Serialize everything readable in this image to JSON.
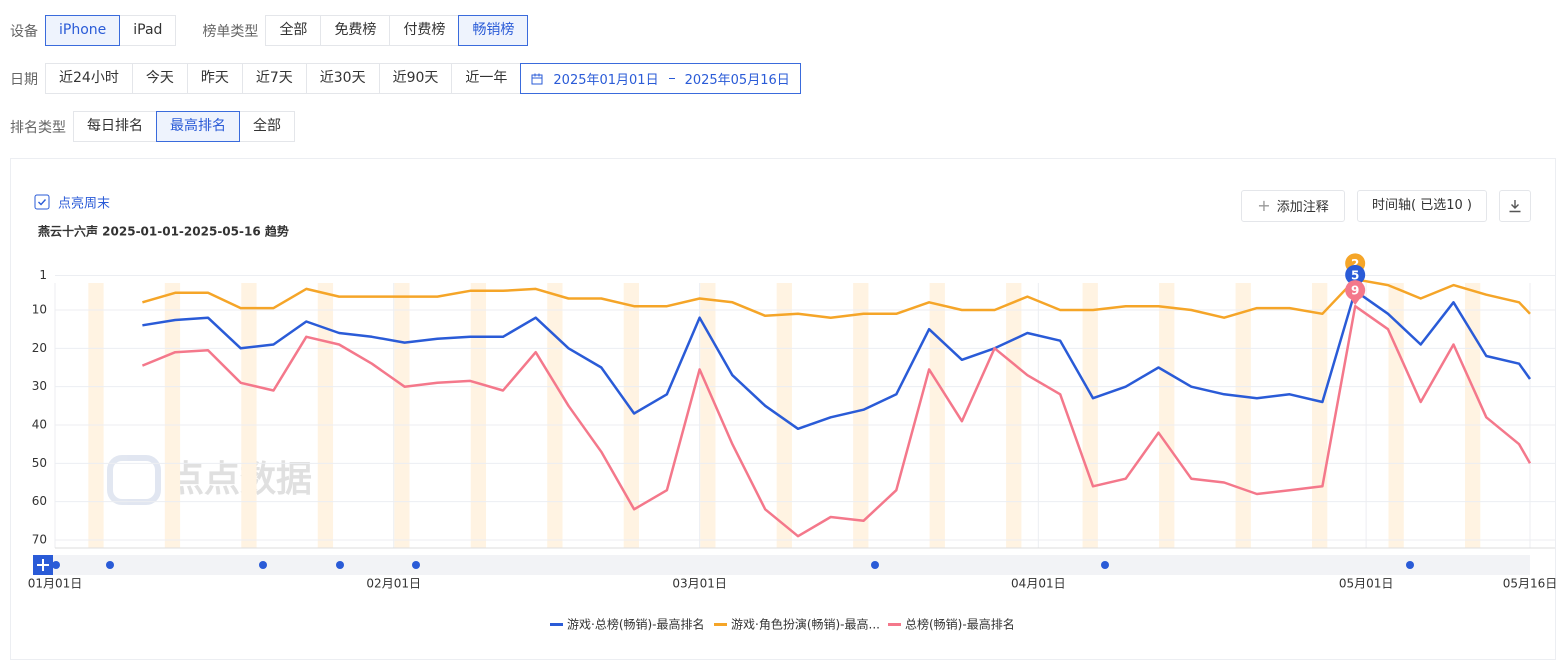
{
  "filters": [
    {
      "label": "设备",
      "options": [
        "iPhone",
        "iPad"
      ],
      "selected": 0
    },
    {
      "label": "榜单类型",
      "options": [
        "全部",
        "免费榜",
        "付费榜",
        "畅销榜"
      ],
      "selected": 3
    }
  ],
  "date_filter": {
    "label": "日期",
    "options": [
      "近24小时",
      "今天",
      "昨天",
      "近7天",
      "近30天",
      "近90天",
      "近一年"
    ],
    "range": [
      "2025年01月01日",
      "2025年05月16日"
    ]
  },
  "rank_filter": {
    "label": "排名类型",
    "options": [
      "每日排名",
      "最高排名",
      "全部"
    ],
    "selected": 1
  },
  "toolbar": {
    "weekend_toggle": "点亮周末",
    "add_note": "添加注释",
    "timeline": "时间轴( 已选10 )"
  },
  "watermark": "点点数据",
  "chart_data": {
    "type": "line",
    "title": "燕云十六声 2025-01-01-2025-05-16 趋势",
    "highlight_weekends": true,
    "y_inverted": true,
    "grid": true,
    "legend": "bottom",
    "x": [
      "01月09日",
      "01月12日",
      "01月15日",
      "01月18日",
      "01月21日",
      "01月24日",
      "01月27日",
      "01月30日",
      "02月02日",
      "02月05日",
      "02月08日",
      "02月11日",
      "02月14日",
      "02月17日",
      "02月20日",
      "02月23日",
      "02月26日",
      "03月01日",
      "03月04日",
      "03月07日",
      "03月10日",
      "03月13日",
      "03月16日",
      "03月19日",
      "03月22日",
      "03月25日",
      "03月28日",
      "03月31日",
      "04月03日",
      "04月06日",
      "04月09日",
      "04月12日",
      "04月15日",
      "04月18日",
      "04月21日",
      "04月24日",
      "04月27日",
      "04月30日",
      "05月03日",
      "05月06日",
      "05月09日",
      "05月12日",
      "05月15日",
      "05月16日"
    ],
    "xlim": [
      "01月01日",
      "05月16日"
    ],
    "xticks": [
      "01月01日",
      "02月01日",
      "03月01日",
      "04月01日",
      "05月01日",
      "05月16日"
    ],
    "ylim": [
      1,
      70
    ],
    "yticks": [
      1,
      10,
      20,
      30,
      40,
      50,
      60,
      70
    ],
    "series": [
      {
        "name": "游戏·角色扮演(畅销)-最高...",
        "color": "#f5a528",
        "peak_label": 2,
        "values": [
          8,
          5.5,
          5.5,
          9.5,
          9.5,
          4.5,
          6.5,
          6.5,
          6.5,
          6.5,
          5,
          5,
          4.5,
          7,
          7,
          9,
          9,
          7,
          8,
          11.5,
          11,
          12,
          11,
          11,
          8,
          10,
          10,
          6.5,
          10,
          10,
          9,
          9,
          10,
          12,
          9.5,
          9.5,
          11,
          2,
          3.5,
          7,
          3.5,
          6,
          8,
          11
        ]
      },
      {
        "name": "游戏·总榜(畅销)-最高排名",
        "color": "#2a5bd7",
        "peak_label": 5,
        "values": [
          14,
          12.6,
          12,
          20,
          19,
          13,
          16,
          17,
          18.5,
          17.5,
          17,
          17,
          12,
          20,
          25,
          37,
          32,
          12,
          27,
          35,
          41,
          38,
          36,
          32,
          15,
          23,
          20,
          16,
          18,
          33,
          30,
          25,
          30,
          32,
          33,
          32,
          34,
          5,
          11,
          19,
          8,
          22,
          24,
          28
        ]
      },
      {
        "name": "总榜(畅销)-最高排名",
        "color": "#f4788b",
        "peak_label": 9,
        "values": [
          24.5,
          21,
          20.5,
          29,
          31,
          17,
          19,
          24,
          30,
          29,
          28.5,
          31,
          21,
          35,
          47,
          62,
          57,
          25.5,
          45,
          62,
          69,
          64,
          65,
          57,
          25.5,
          39,
          20,
          27,
          32,
          56,
          54,
          42,
          54,
          55,
          58,
          57,
          56,
          9,
          15,
          34,
          19,
          38,
          45,
          50
        ]
      }
    ]
  }
}
